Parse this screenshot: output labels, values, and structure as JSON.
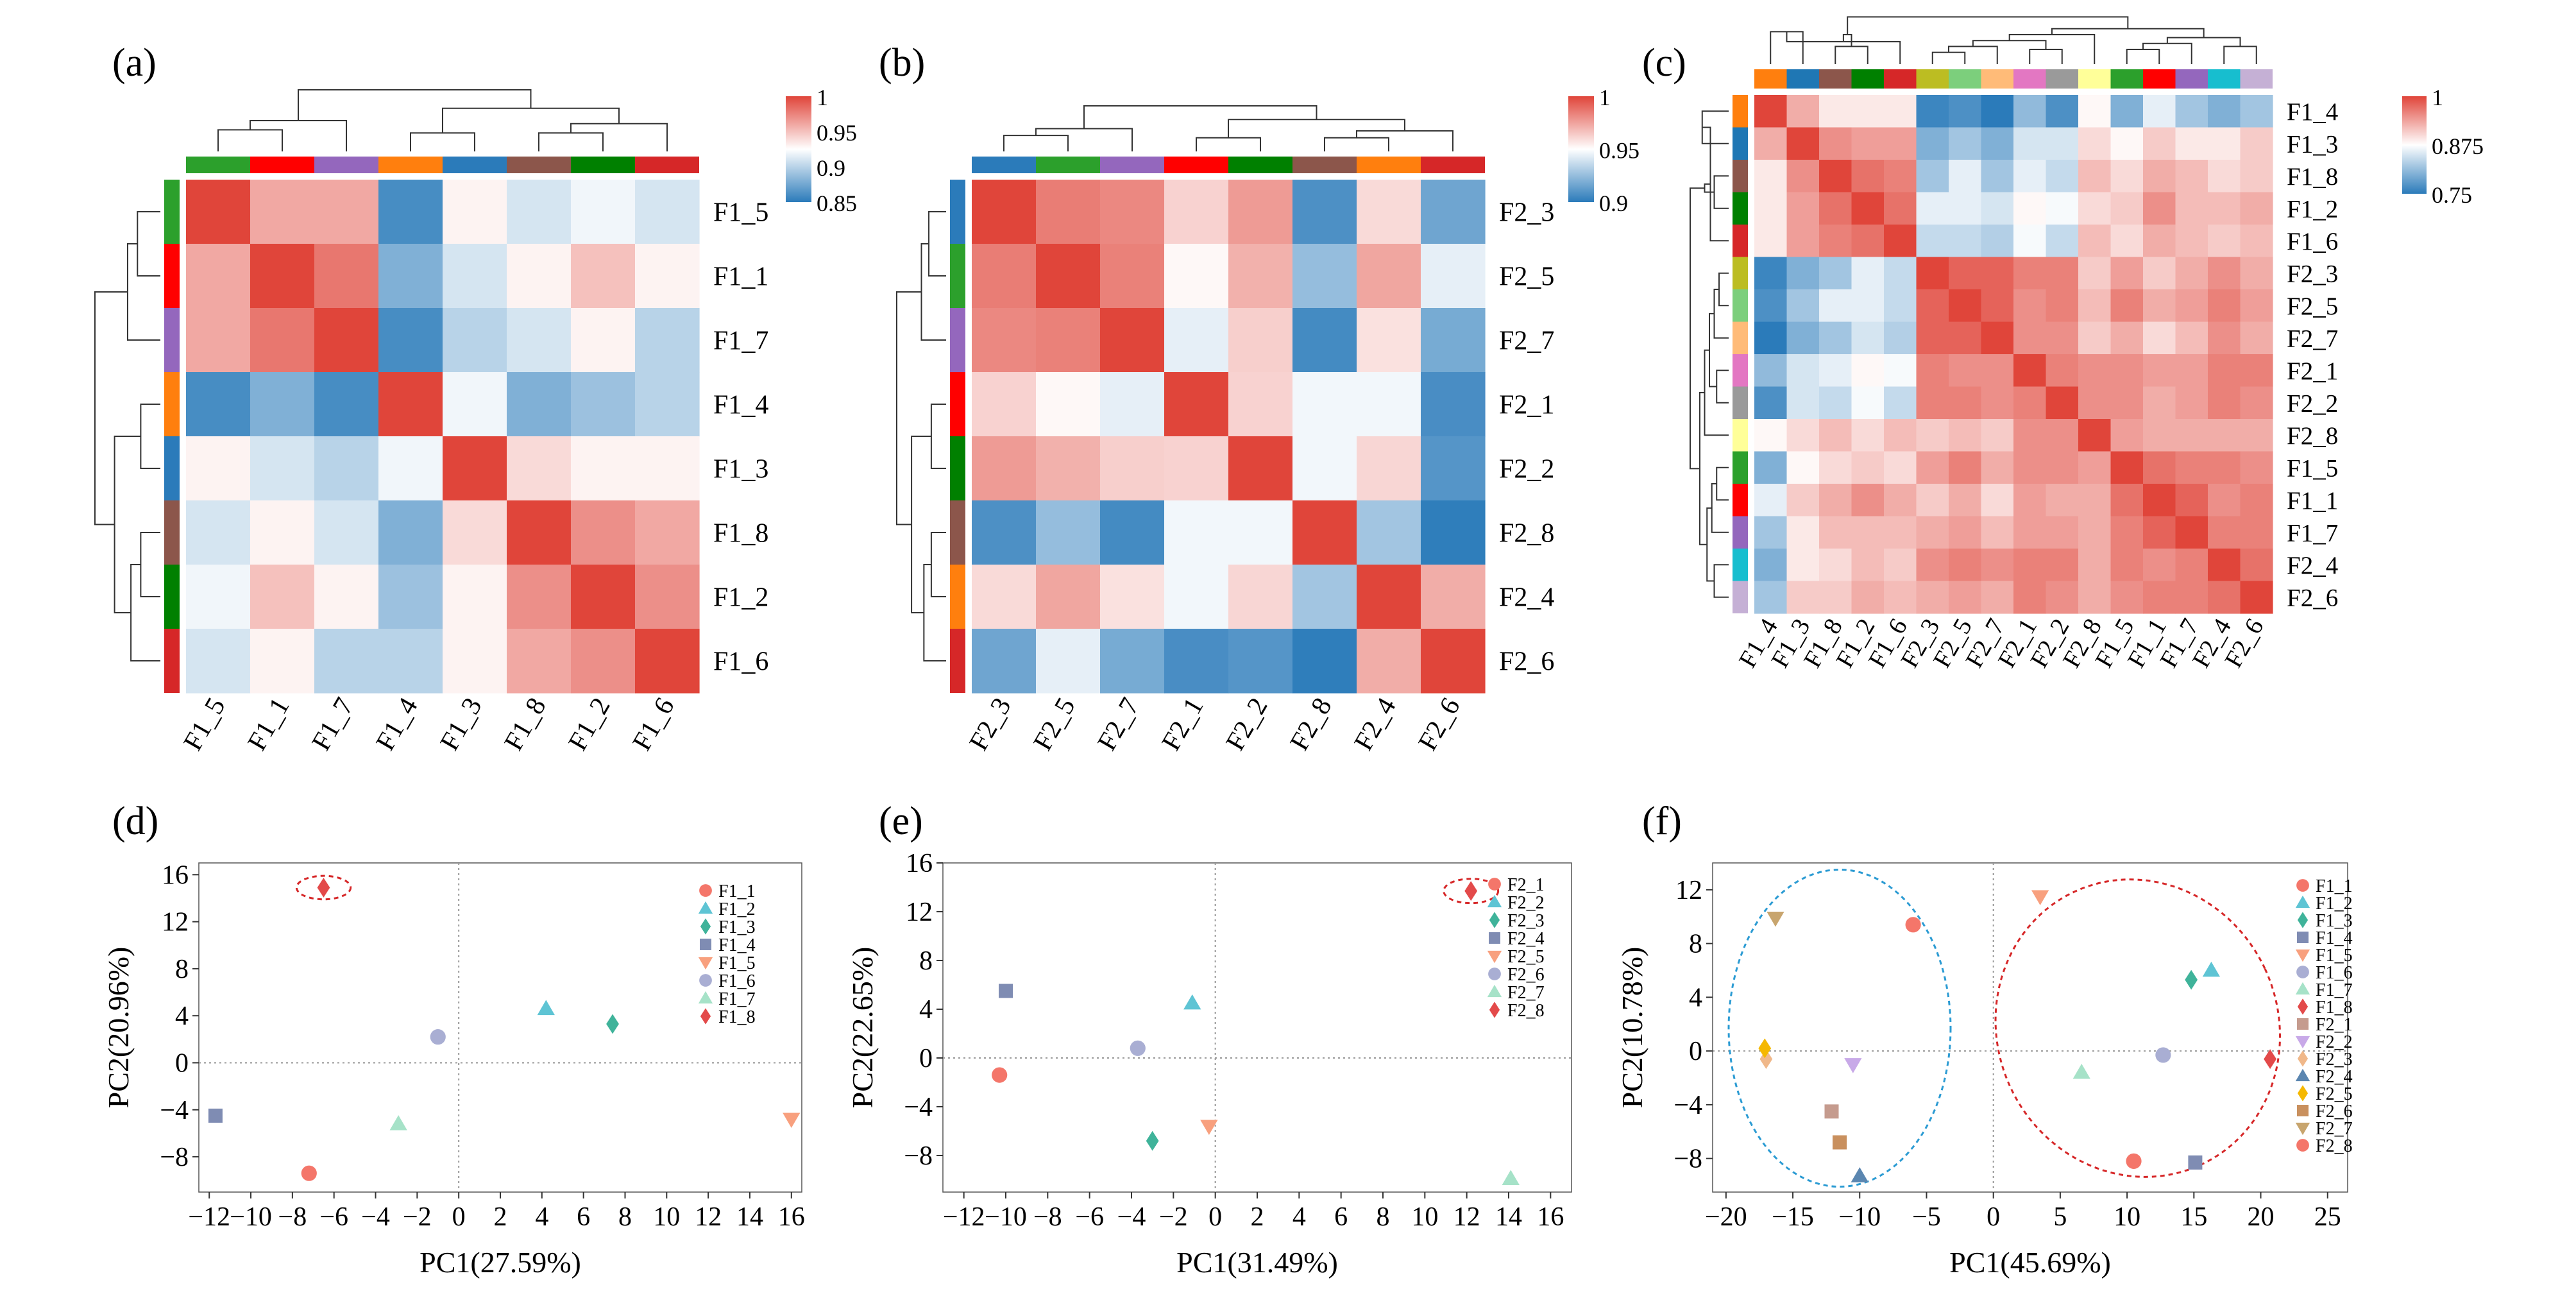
{
  "panels": {
    "a": {
      "label": "(a)"
    },
    "b": {
      "label": "(b)"
    },
    "c": {
      "label": "(c)"
    },
    "d": {
      "label": "(d)"
    },
    "e": {
      "label": "(e)"
    },
    "f": {
      "label": "(f)"
    }
  },
  "palette": {
    "F1_1": "#ff0000",
    "F1_2": "#008000",
    "F1_3": "#2b7bba",
    "F1_4": "#ff7f0e",
    "F1_5": "#2ca02c",
    "F1_6": "#d62728",
    "F1_7": "#9467bd",
    "F1_8": "#8c564b",
    "F2_1": "#ff0000",
    "F2_2": "#008000",
    "F2_3": "#2b7bba",
    "F2_4": "#ff7f0e",
    "F2_5": "#2ca02c",
    "F2_6": "#d62728",
    "F2_7": "#9467bd",
    "F2_8": "#8c564b"
  },
  "c_palette": {
    "F1_4": "#ff7f0e",
    "F1_3": "#1f77b4",
    "F1_8": "#8c564b",
    "F1_2": "#008000",
    "F1_6": "#d62728",
    "F2_3": "#bcbd22",
    "F2_5": "#7ccf7c",
    "F2_7": "#ffbb78",
    "F2_1": "#e377c2",
    "F2_2": "#9a9a9a",
    "F2_8": "#ffff99",
    "F1_5": "#2ca02c",
    "F1_1": "#ff0000",
    "F1_7": "#9467bd",
    "F2_4": "#17becf",
    "F2_6": "#c5b0d5"
  },
  "colorscale": {
    "low": "#2b7bba",
    "mid": "#ffffff",
    "high": "#e0453a"
  },
  "chart_data": [
    {
      "id": "a",
      "type": "heatmap",
      "labels": [
        "F1_5",
        "F1_1",
        "F1_7",
        "F1_4",
        "F1_3",
        "F1_8",
        "F1_2",
        "F1_6"
      ],
      "colorbar": {
        "min": 0.85,
        "max": 1,
        "ticks": [
          "1",
          "0.95",
          "0.9",
          "0.85"
        ],
        "tick_values": [
          1,
          0.95,
          0.9,
          0.85
        ]
      },
      "values": [
        [
          1.0,
          0.96,
          0.96,
          0.86,
          0.93,
          0.91,
          0.92,
          0.91
        ],
        [
          0.96,
          1.0,
          0.98,
          0.88,
          0.91,
          0.93,
          0.95,
          0.93
        ],
        [
          0.96,
          0.98,
          1.0,
          0.86,
          0.9,
          0.91,
          0.93,
          0.9
        ],
        [
          0.86,
          0.88,
          0.86,
          1.0,
          0.92,
          0.88,
          0.89,
          0.9
        ],
        [
          0.93,
          0.91,
          0.9,
          0.92,
          1.0,
          0.94,
          0.93,
          0.93
        ],
        [
          0.91,
          0.93,
          0.91,
          0.88,
          0.94,
          1.0,
          0.97,
          0.96
        ],
        [
          0.92,
          0.95,
          0.93,
          0.89,
          0.93,
          0.97,
          1.0,
          0.97
        ],
        [
          0.91,
          0.93,
          0.9,
          0.9,
          0.93,
          0.96,
          0.97,
          1.0
        ]
      ]
    },
    {
      "id": "b",
      "type": "heatmap",
      "labels": [
        "F2_3",
        "F2_5",
        "F2_7",
        "F2_1",
        "F2_2",
        "F2_8",
        "F2_4",
        "F2_6"
      ],
      "colorbar": {
        "min": 0.9,
        "max": 1,
        "ticks": [
          "1",
          "0.95",
          "0.9"
        ],
        "tick_values": [
          1,
          0.95,
          0.9
        ]
      },
      "values": [
        [
          1.0,
          0.985,
          0.982,
          0.962,
          0.977,
          0.908,
          0.96,
          0.916
        ],
        [
          0.985,
          1.0,
          0.984,
          0.952,
          0.971,
          0.925,
          0.974,
          0.944
        ],
        [
          0.982,
          0.984,
          1.0,
          0.944,
          0.963,
          0.906,
          0.958,
          0.918
        ],
        [
          0.962,
          0.952,
          0.944,
          1.0,
          0.962,
          0.947,
          0.947,
          0.907
        ],
        [
          0.977,
          0.971,
          0.963,
          0.962,
          1.0,
          0.947,
          0.961,
          0.91
        ],
        [
          0.908,
          0.925,
          0.906,
          0.947,
          0.947,
          1.0,
          0.928,
          0.901
        ],
        [
          0.96,
          0.974,
          0.958,
          0.947,
          0.961,
          0.928,
          1.0,
          0.972
        ],
        [
          0.916,
          0.944,
          0.918,
          0.907,
          0.91,
          0.901,
          0.972,
          1.0
        ]
      ]
    },
    {
      "id": "c",
      "type": "heatmap",
      "labels": [
        "F1_4",
        "F1_3",
        "F1_8",
        "F1_2",
        "F1_6",
        "F2_3",
        "F2_5",
        "F2_7",
        "F2_1",
        "F2_2",
        "F2_8",
        "F1_5",
        "F1_1",
        "F1_7",
        "F2_4",
        "F2_6"
      ],
      "colorbar": {
        "min": 0.75,
        "max": 1,
        "ticks": [
          "1",
          "0.875",
          "0.75"
        ],
        "tick_values": [
          1,
          0.875,
          0.75
        ]
      },
      "values": [
        [
          1.0,
          0.93,
          0.89,
          0.89,
          0.89,
          0.76,
          0.77,
          0.75,
          0.81,
          0.77,
          0.88,
          0.8,
          0.86,
          0.82,
          0.8,
          0.82
        ],
        [
          0.93,
          1.0,
          0.95,
          0.94,
          0.94,
          0.8,
          0.82,
          0.8,
          0.85,
          0.85,
          0.9,
          0.88,
          0.91,
          0.89,
          0.89,
          0.91
        ],
        [
          0.89,
          0.95,
          1.0,
          0.97,
          0.96,
          0.82,
          0.86,
          0.82,
          0.86,
          0.84,
          0.92,
          0.9,
          0.93,
          0.92,
          0.9,
          0.91
        ],
        [
          0.89,
          0.94,
          0.97,
          1.0,
          0.97,
          0.86,
          0.86,
          0.85,
          0.88,
          0.87,
          0.9,
          0.91,
          0.95,
          0.92,
          0.92,
          0.93
        ],
        [
          0.89,
          0.94,
          0.96,
          0.97,
          1.0,
          0.84,
          0.84,
          0.83,
          0.87,
          0.84,
          0.92,
          0.9,
          0.93,
          0.92,
          0.91,
          0.92
        ],
        [
          0.76,
          0.8,
          0.82,
          0.86,
          0.84,
          1.0,
          0.98,
          0.98,
          0.96,
          0.96,
          0.91,
          0.94,
          0.91,
          0.93,
          0.95,
          0.93
        ],
        [
          0.77,
          0.82,
          0.86,
          0.86,
          0.84,
          0.98,
          1.0,
          0.98,
          0.95,
          0.96,
          0.92,
          0.96,
          0.93,
          0.94,
          0.96,
          0.94
        ],
        [
          0.75,
          0.8,
          0.82,
          0.85,
          0.83,
          0.98,
          0.98,
          1.0,
          0.95,
          0.95,
          0.91,
          0.93,
          0.9,
          0.92,
          0.95,
          0.93
        ],
        [
          0.81,
          0.85,
          0.86,
          0.88,
          0.87,
          0.96,
          0.95,
          0.95,
          1.0,
          0.96,
          0.95,
          0.95,
          0.94,
          0.94,
          0.96,
          0.96
        ],
        [
          0.77,
          0.85,
          0.84,
          0.87,
          0.84,
          0.96,
          0.96,
          0.95,
          0.96,
          1.0,
          0.95,
          0.95,
          0.93,
          0.94,
          0.96,
          0.95
        ],
        [
          0.88,
          0.9,
          0.92,
          0.9,
          0.92,
          0.91,
          0.92,
          0.91,
          0.95,
          0.95,
          1.0,
          0.94,
          0.93,
          0.93,
          0.93,
          0.93
        ],
        [
          0.8,
          0.88,
          0.9,
          0.91,
          0.9,
          0.94,
          0.96,
          0.93,
          0.95,
          0.95,
          0.94,
          1.0,
          0.97,
          0.96,
          0.96,
          0.95
        ],
        [
          0.86,
          0.91,
          0.93,
          0.95,
          0.93,
          0.91,
          0.93,
          0.9,
          0.94,
          0.93,
          0.93,
          0.97,
          1.0,
          0.98,
          0.95,
          0.96
        ],
        [
          0.82,
          0.89,
          0.92,
          0.92,
          0.92,
          0.93,
          0.94,
          0.92,
          0.94,
          0.94,
          0.93,
          0.96,
          0.98,
          1.0,
          0.96,
          0.96
        ],
        [
          0.8,
          0.89,
          0.9,
          0.92,
          0.91,
          0.95,
          0.96,
          0.95,
          0.96,
          0.96,
          0.93,
          0.96,
          0.95,
          0.96,
          1.0,
          0.97
        ],
        [
          0.82,
          0.91,
          0.91,
          0.93,
          0.92,
          0.93,
          0.94,
          0.93,
          0.96,
          0.95,
          0.93,
          0.95,
          0.96,
          0.96,
          0.97,
          1.0
        ]
      ]
    },
    {
      "id": "d",
      "type": "scatter",
      "xlabel": "PC1(27.59%)",
      "ylabel": "PC2(20.96%)",
      "xlim": [
        -12.5,
        16.5
      ],
      "ylim": [
        -11,
        17
      ],
      "xticks": [
        -12,
        -10,
        -8,
        -6,
        -4,
        -2,
        0,
        2,
        4,
        6,
        8,
        10,
        12,
        14,
        16
      ],
      "yticks": [
        -8,
        -4,
        0,
        4,
        8,
        12,
        16
      ],
      "highlight_ellipses": [
        {
          "cx": -6.5,
          "cy": 14.9,
          "rx": 1.3,
          "ry": 1.0,
          "color": "#d62728"
        }
      ],
      "points": [
        {
          "name": "F1_1",
          "x": -7.2,
          "y": -9.4,
          "marker": "circle",
          "color": "#f4766a"
        },
        {
          "name": "F1_2",
          "x": 4.2,
          "y": 4.6,
          "marker": "triangle",
          "color": "#5ec4d4"
        },
        {
          "name": "F1_3",
          "x": 7.4,
          "y": 3.3,
          "marker": "diamond",
          "color": "#3fb39a"
        },
        {
          "name": "F1_4",
          "x": -11.7,
          "y": -4.5,
          "marker": "square",
          "color": "#7f8cb3"
        },
        {
          "name": "F1_5",
          "x": 16.0,
          "y": -4.8,
          "marker": "triangle-down",
          "color": "#f8a07e"
        },
        {
          "name": "F1_6",
          "x": -1.0,
          "y": 2.2,
          "marker": "circle",
          "color": "#a9aed3"
        },
        {
          "name": "F1_7",
          "x": -2.9,
          "y": -5.2,
          "marker": "triangle",
          "color": "#a6e2c8"
        },
        {
          "name": "F1_8",
          "x": -6.5,
          "y": 14.9,
          "marker": "diamond",
          "color": "#e34a4a"
        }
      ]
    },
    {
      "id": "e",
      "type": "scatter",
      "xlabel": "PC1(31.49%)",
      "ylabel": "PC2(22.65%)",
      "xlim": [
        -13,
        17
      ],
      "ylim": [
        -11,
        16
      ],
      "xticks": [
        -12,
        -10,
        -8,
        -6,
        -4,
        -2,
        0,
        2,
        4,
        6,
        8,
        10,
        12,
        14,
        16
      ],
      "yticks": [
        -8,
        -4,
        0,
        4,
        8,
        12,
        16
      ],
      "highlight_ellipses": [
        {
          "cx": 12.2,
          "cy": 13.7,
          "rx": 1.3,
          "ry": 1.0,
          "color": "#d62728"
        }
      ],
      "points": [
        {
          "name": "F2_1",
          "x": -10.3,
          "y": -1.4,
          "marker": "circle",
          "color": "#f4766a"
        },
        {
          "name": "F2_2",
          "x": -1.1,
          "y": 4.5,
          "marker": "triangle",
          "color": "#5ec4d4"
        },
        {
          "name": "F2_3",
          "x": -3.0,
          "y": -6.8,
          "marker": "diamond",
          "color": "#3fb39a"
        },
        {
          "name": "F2_4",
          "x": -10.0,
          "y": 5.5,
          "marker": "square",
          "color": "#7f8cb3"
        },
        {
          "name": "F2_5",
          "x": -0.3,
          "y": -5.6,
          "marker": "triangle-down",
          "color": "#f8a07e"
        },
        {
          "name": "F2_6",
          "x": -3.7,
          "y": 0.8,
          "marker": "circle",
          "color": "#a9aed3"
        },
        {
          "name": "F2_7",
          "x": 14.1,
          "y": -9.9,
          "marker": "triangle",
          "color": "#a6e2c8"
        },
        {
          "name": "F2_8",
          "x": 12.2,
          "y": 13.7,
          "marker": "diamond",
          "color": "#e34a4a"
        }
      ]
    },
    {
      "id": "f",
      "type": "scatter",
      "xlabel": "PC1(45.69%)",
      "ylabel": "PC2(10.78%)",
      "xlim": [
        -21,
        26.5
      ],
      "ylim": [
        -10.5,
        14
      ],
      "xticks": [
        -20,
        -15,
        -10,
        -5,
        0,
        5,
        10,
        15,
        20,
        25
      ],
      "yticks": [
        -8,
        -4,
        0,
        4,
        8,
        12
      ],
      "highlight_ellipses": [
        {
          "cx": -11.5,
          "cy": 1.7,
          "rx": 8.3,
          "ry": 11.8,
          "color": "#2b9bd3"
        },
        {
          "cx": 10.8,
          "cy": 1.7,
          "rx": 10.5,
          "ry": 11.2,
          "color": "#d62728",
          "rotate": -25
        }
      ],
      "points": [
        {
          "name": "F1_1",
          "x": 10.5,
          "y": -8.2,
          "marker": "circle",
          "color": "#f4766a"
        },
        {
          "name": "F1_2",
          "x": 16.3,
          "y": 6.0,
          "marker": "triangle",
          "color": "#5ec4d4"
        },
        {
          "name": "F1_3",
          "x": 14.8,
          "y": 5.3,
          "marker": "diamond",
          "color": "#3fb39a"
        },
        {
          "name": "F1_4",
          "x": 15.1,
          "y": -8.3,
          "marker": "square",
          "color": "#7f8cb3"
        },
        {
          "name": "F1_5",
          "x": 3.5,
          "y": 11.5,
          "marker": "triangle-down",
          "color": "#f8a07e"
        },
        {
          "name": "F1_6",
          "x": 12.7,
          "y": -0.3,
          "marker": "circle",
          "color": "#a9aed3"
        },
        {
          "name": "F1_7",
          "x": 6.6,
          "y": -1.6,
          "marker": "triangle",
          "color": "#a6e2c8"
        },
        {
          "name": "F1_8",
          "x": 20.7,
          "y": -0.6,
          "marker": "diamond",
          "color": "#e34a4a"
        },
        {
          "name": "F2_1",
          "x": -12.1,
          "y": -4.5,
          "marker": "square",
          "color": "#c59b8e"
        },
        {
          "name": "F2_2",
          "x": -10.5,
          "y": -1.0,
          "marker": "triangle-down",
          "color": "#c8a9e8"
        },
        {
          "name": "F2_3",
          "x": -17.0,
          "y": -0.6,
          "marker": "diamond",
          "color": "#f0b88a"
        },
        {
          "name": "F2_4",
          "x": -10.0,
          "y": -9.3,
          "marker": "triangle",
          "color": "#5b86b0"
        },
        {
          "name": "F2_5",
          "x": -17.1,
          "y": 0.2,
          "marker": "diamond",
          "color": "#f5b800"
        },
        {
          "name": "F2_6",
          "x": -11.5,
          "y": -6.8,
          "marker": "square",
          "color": "#c9905e"
        },
        {
          "name": "F2_7",
          "x": -16.3,
          "y": 9.9,
          "marker": "triangle-down",
          "color": "#c8a56e"
        },
        {
          "name": "F2_8",
          "x": -6.0,
          "y": 9.4,
          "marker": "circle",
          "color": "#f4766a"
        }
      ]
    }
  ]
}
